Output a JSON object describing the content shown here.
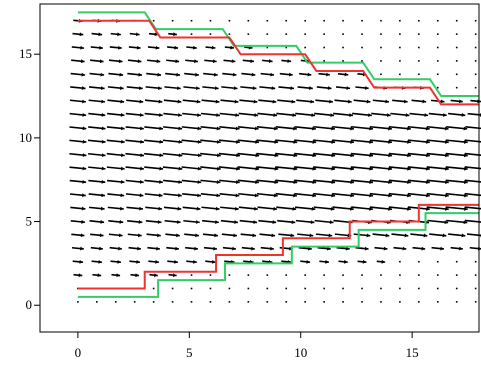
{
  "chart_data": {
    "type": "vector-field",
    "title": "",
    "xlabel": "",
    "ylabel": "",
    "xlim": [
      -1.7,
      18
    ],
    "ylim": [
      -1.6,
      18
    ],
    "grid": false,
    "legend": "none",
    "x_ticks": [
      {
        "value": 0,
        "label": "0"
      },
      {
        "value": 5,
        "label": "5"
      },
      {
        "value": 10,
        "label": "10"
      },
      {
        "value": 15,
        "label": "15"
      }
    ],
    "y_ticks": [
      {
        "value": 0,
        "label": "0"
      },
      {
        "value": 5,
        "label": "5"
      },
      {
        "value": 10,
        "label": "10"
      },
      {
        "value": 15,
        "label": "15"
      }
    ],
    "series": [
      {
        "color": "#33cc66",
        "x": [
          0,
          3,
          3.5,
          6.5,
          7,
          9.8,
          10.3,
          12.8,
          13.3,
          15.8,
          16.3,
          18
        ],
        "y": [
          17.5,
          17.5,
          16.5,
          16.5,
          15.5,
          15.5,
          14.5,
          14.5,
          13.5,
          13.5,
          12.5,
          12.5
        ]
      },
      {
        "color": "#ee3333",
        "x": [
          0,
          3.2,
          3.7,
          6.8,
          7.3,
          10.2,
          10.7,
          12.8,
          13.3,
          15.8,
          16.3,
          18
        ],
        "y": [
          17,
          17,
          16,
          16,
          15,
          15,
          14,
          14,
          13,
          13,
          12,
          12
        ]
      },
      {
        "color": "#ee3333",
        "x": [
          0,
          3,
          3,
          6.2,
          6.2,
          9.2,
          9.2,
          12.2,
          12.2,
          15.3,
          15.3,
          18
        ],
        "y": [
          1,
          1,
          2,
          2,
          3,
          3,
          4,
          4,
          5,
          5,
          6,
          6
        ]
      },
      {
        "color": "#33cc66",
        "x": [
          0,
          3.6,
          3.6,
          6.6,
          6.6,
          9.6,
          9.6,
          12.6,
          12.6,
          15.6,
          15.6,
          18
        ],
        "y": [
          0.5,
          0.5,
          1.5,
          1.5,
          2.5,
          2.5,
          3.5,
          3.5,
          4.5,
          4.5,
          5.5,
          5.5
        ]
      }
    ],
    "vector_field": {
      "x_start": 0,
      "x_step": 0.85,
      "x_count": 22,
      "y_start": 0.2,
      "y_step": 0.8,
      "y_count": 22,
      "color": "#000000"
    }
  }
}
